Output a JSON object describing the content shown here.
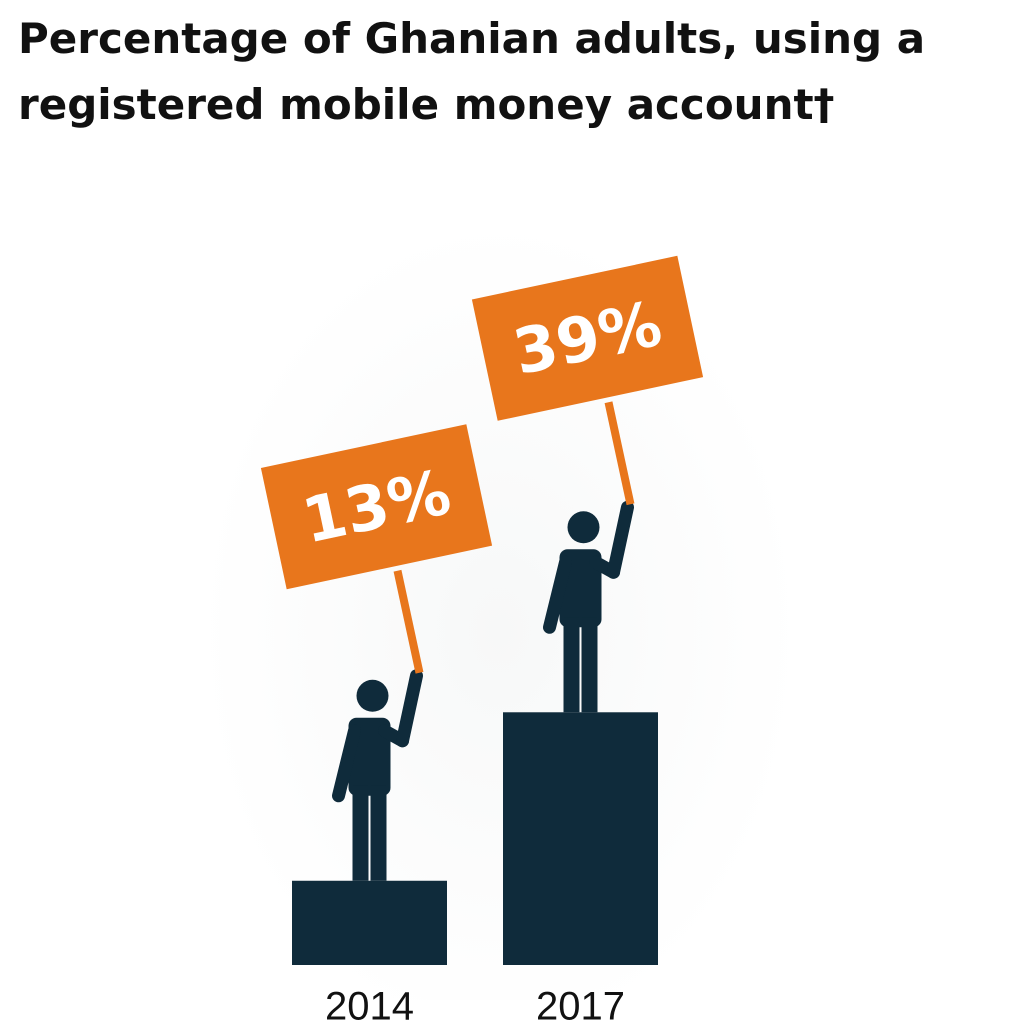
{
  "chart_data": {
    "type": "pictograph",
    "title": "Percentage of Ghanian adults, using a registered mobile money account†",
    "categories": [
      "2014",
      "2017"
    ],
    "values": [
      13,
      39
    ],
    "value_labels": [
      "13%",
      "39%"
    ],
    "color": "#0f2b3b",
    "sign_color": "#e8761c"
  }
}
